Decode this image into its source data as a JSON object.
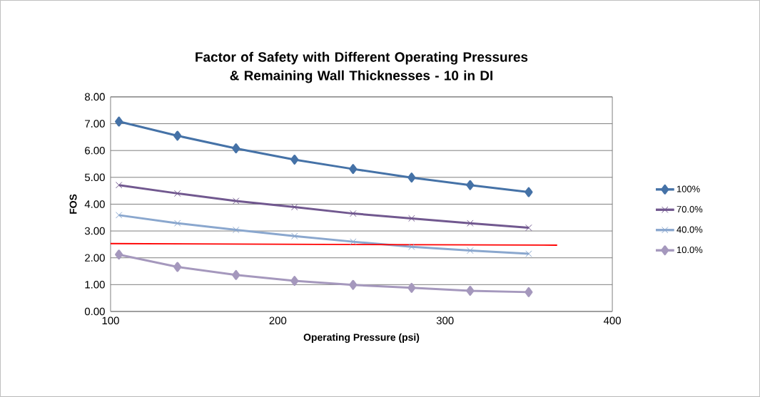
{
  "chart_data": {
    "type": "line",
    "title": "Factor of Safety with Different Operating Pressures & Remaining Wall Thicknesses - 10 in DI",
    "xlabel": "Operating Pressure (psi)",
    "ylabel": "FOS",
    "x": [
      105,
      140,
      175,
      210,
      245,
      280,
      315,
      350
    ],
    "series": [
      {
        "name": "100%",
        "color": "#4572a7",
        "marker": "diamond",
        "values": [
          7.08,
          6.55,
          6.08,
          5.66,
          5.31,
          4.99,
          4.71,
          4.45
        ]
      },
      {
        "name": "70.0%",
        "color": "#71588f",
        "marker": "cross",
        "values": [
          4.71,
          4.4,
          4.12,
          3.89,
          3.65,
          3.47,
          3.29,
          3.12
        ]
      },
      {
        "name": "40.0%",
        "color": "#8aa7ce",
        "marker": "cross",
        "values": [
          3.59,
          3.29,
          3.04,
          2.81,
          2.6,
          2.41,
          2.27,
          2.15
        ]
      },
      {
        "name": "10.0%",
        "color": "#a598bd",
        "marker": "diamond",
        "values": [
          2.12,
          1.66,
          1.36,
          1.14,
          0.99,
          0.88,
          0.77,
          0.72
        ]
      },
      {
        "color": "#ff0000",
        "marker": "none",
        "x": [
          100,
          367
        ],
        "values": [
          2.53,
          2.47
        ]
      }
    ],
    "xlim": [
      100,
      400
    ],
    "ylim": [
      0,
      8
    ],
    "xticks": [
      100,
      200,
      300,
      400
    ],
    "yticks": [
      {
        "value": 0,
        "label": "0.00"
      },
      {
        "value": 1,
        "label": "1.00"
      },
      {
        "value": 2,
        "label": "2.00"
      },
      {
        "value": 3,
        "label": "3.00"
      },
      {
        "value": 4,
        "label": "4.00"
      },
      {
        "value": 5,
        "label": "5.00"
      },
      {
        "value": 6,
        "label": "6.00"
      },
      {
        "value": 7,
        "label": "7.00"
      },
      {
        "value": 8,
        "label": "8.00"
      }
    ],
    "grid": "y",
    "legend": "right"
  }
}
